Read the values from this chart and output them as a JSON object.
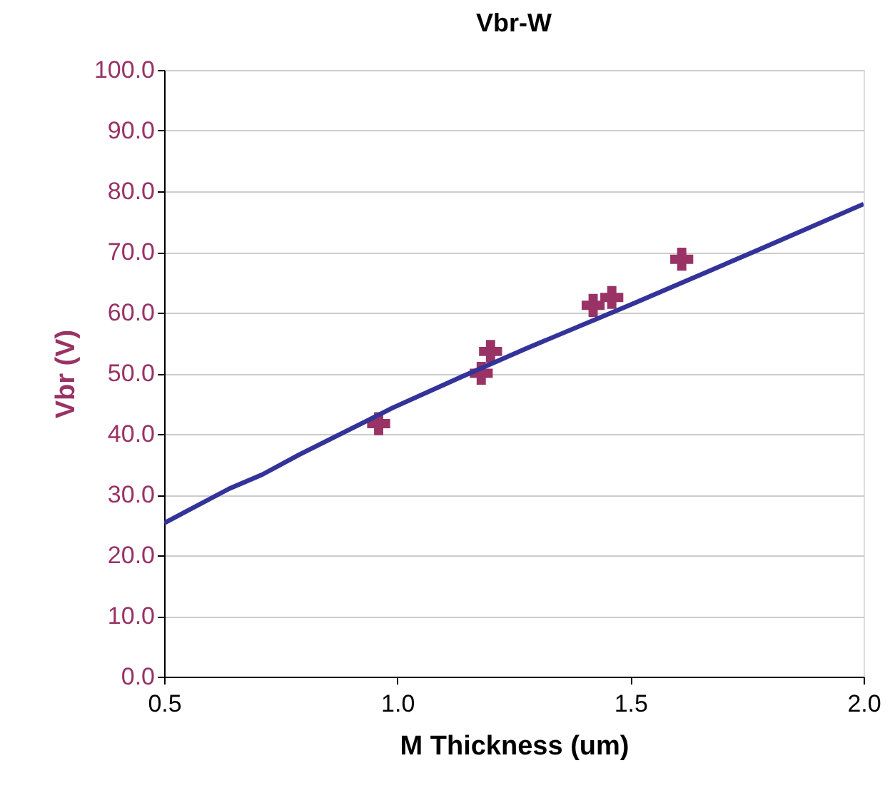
{
  "chart_data": {
    "type": "scatter",
    "title": "Vbr-W",
    "xlabel": "M Thickness (um)",
    "ylabel": "Vbr (V)",
    "xlim": [
      0.5,
      2.0
    ],
    "xticks": [
      0.5,
      {
        "value": 1.0,
        "label": "1.0"
      },
      1.5,
      {
        "value": 2.0,
        "label": "2.0"
      }
    ],
    "ylim": [
      0,
      100
    ],
    "yticks": [
      {
        "value": 0,
        "label": "0.0"
      },
      {
        "value": 10,
        "label": "10.0"
      },
      {
        "value": 20,
        "label": "20.0"
      },
      {
        "value": 30,
        "label": "30.0"
      },
      {
        "value": 40,
        "label": "40.0"
      },
      {
        "value": 50,
        "label": "50.0"
      },
      {
        "value": 60,
        "label": "60.0"
      },
      {
        "value": 70,
        "label": "70.0"
      },
      {
        "value": 80,
        "label": "80.0"
      },
      {
        "value": 90,
        "label": "90.0"
      },
      {
        "value": 100,
        "label": "100.0"
      }
    ],
    "grid": "y",
    "series": [
      {
        "marker": "cross",
        "color": "#993366",
        "x": [
          0.96,
          1.18,
          1.2,
          1.42,
          1.46,
          1.61
        ],
        "values": [
          41.7,
          50.0,
          53.6,
          61.2,
          62.5,
          68.8
        ]
      },
      {
        "type": "line",
        "marker": "none",
        "line_style": "solid",
        "color": "#333399",
        "x": [
          0.5,
          0.64,
          0.71,
          0.79,
          0.99,
          1.14,
          1.28,
          1.5,
          1.77,
          2.0
        ],
        "values": [
          25.3,
          31.0,
          33.3,
          36.6,
          44.3,
          49.5,
          54.2,
          61.3,
          70.2,
          77.9
        ]
      }
    ]
  }
}
